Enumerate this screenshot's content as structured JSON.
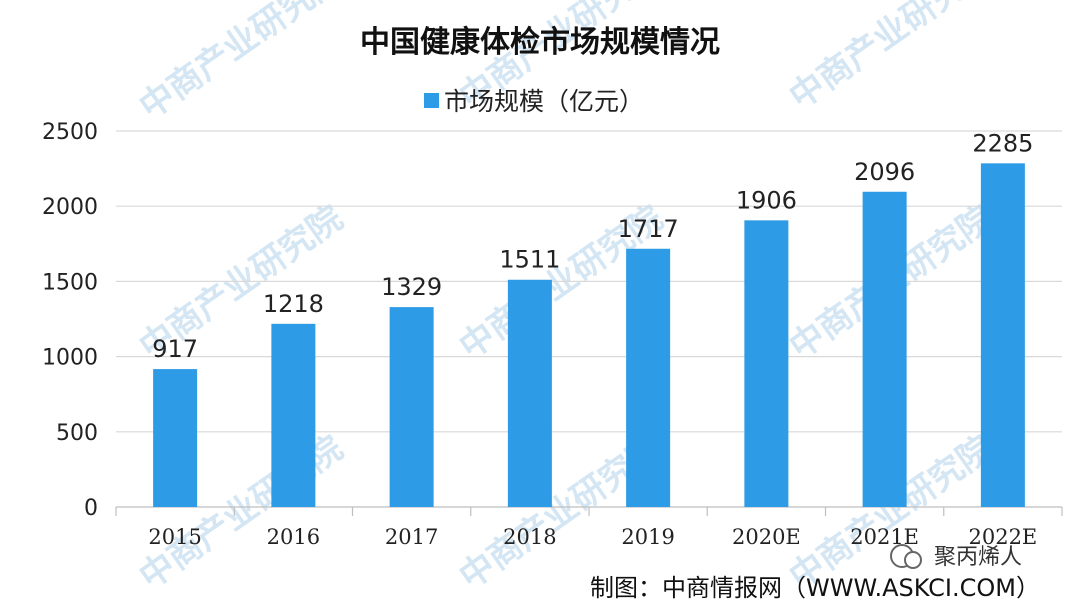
{
  "chart_data": {
    "type": "bar",
    "title": "中国健康体检市场规模情况",
    "categories": [
      "2015",
      "2016",
      "2017",
      "2018",
      "2019",
      "2020E",
      "2021E",
      "2022E"
    ],
    "series": [
      {
        "name": "市场规模（亿元）",
        "values": [
          917,
          1218,
          1329,
          1511,
          1717,
          1906,
          2096,
          2285
        ],
        "color": "#2e9be6"
      }
    ],
    "ylim": [
      0,
      2500
    ],
    "yticks": [
      0,
      500,
      1000,
      1500,
      2000,
      2500
    ],
    "grid": true,
    "legend_position": "top-center",
    "data_labels": true
  },
  "source": "制图：中商情报网（WWW.ASKCI.COM）",
  "brand": "聚丙烯人",
  "watermark": "中商产业研究院",
  "colors": {
    "bar": "#2e9be6",
    "grid": "#d9d9d9",
    "axis": "#bfbfbf",
    "watermark": "#d4e6f3"
  }
}
